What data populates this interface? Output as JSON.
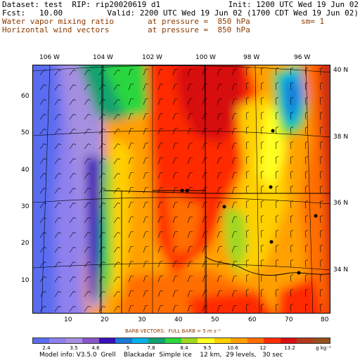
{
  "header": {
    "dataset_line": "Dataset: test  RIP: rip20020619 d1",
    "init_line": "Init: 1200 UTC Wed 19 Jun 02",
    "fcst_line": "Fcst:   10.00",
    "valid_line": "Valid: 2200 UTC Wed 19 Jun 02 (1700 CDT Wed 19 Jun 02)",
    "field1_label": "Water vapor mixing ratio",
    "field1_level": "at pressure =  850 hPa",
    "field1_sm": "sm= 1",
    "field2_label": "Horizontal wind vectors",
    "field2_level": "at pressure =  850 hPa"
  },
  "axes": {
    "lon_top": [
      "106 W",
      "104 W",
      "102 W",
      "100 W",
      "98 W",
      "96 W"
    ],
    "lat_right": [
      "40 N",
      "38 N",
      "36 N",
      "34 N"
    ],
    "grid_left": [
      "60",
      "50",
      "40",
      "30",
      "20",
      "10"
    ],
    "grid_bottom": [
      "10",
      "20",
      "30",
      "40",
      "50",
      "60",
      "70",
      "80"
    ]
  },
  "barb_legend": "BARB VECTORS:  FULL BARB = 5 m s⁻¹",
  "colorbar": {
    "colors": [
      "#5a6cf0",
      "#8f80ee",
      "#a58fe0",
      "#8856c8",
      "#3a10b8",
      "#1878d8",
      "#06b0e8",
      "#14a070",
      "#2cd63c",
      "#9ed820",
      "#ffff20",
      "#ffd000",
      "#ffa000",
      "#ff6e00",
      "#ff2c00",
      "#d81010",
      "#b23a1c",
      "#96501c"
    ],
    "labels": [
      "2.4",
      "3.5",
      "4.6",
      "5",
      "7.8",
      "8.4",
      "9.5",
      "10.6",
      "12",
      "13.2",
      "g kg⁻¹"
    ],
    "unit": "g kg⁻¹"
  },
  "footer": "Model info: V3.5.0  Grell    Blackadar  Simple ice    12 km,  29 levels,   30 sec"
}
